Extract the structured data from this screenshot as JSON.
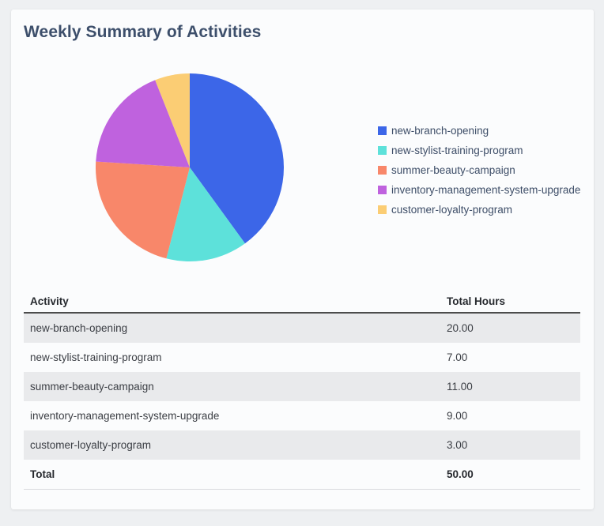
{
  "page": {
    "background_color": "#eef0f2",
    "card_background": "#fbfcfd"
  },
  "card": {
    "title": "Weekly Summary of Activities"
  },
  "chart_data": {
    "type": "pie",
    "title": "Weekly Summary of Activities",
    "categories": [
      "new-branch-opening",
      "new-stylist-training-program",
      "summer-beauty-campaign",
      "inventory-management-system-upgrade",
      "customer-loyalty-program"
    ],
    "values": [
      20,
      7,
      11,
      9,
      3
    ],
    "total": 50,
    "colors": [
      "#3c66e8",
      "#5de1da",
      "#f8876a",
      "#bf62de",
      "#fbcd74"
    ],
    "legend_position": "right",
    "start_angle_deg": 0,
    "direction": "clockwise"
  },
  "table": {
    "headers": [
      "Activity",
      "Total Hours"
    ],
    "rows": [
      [
        "new-branch-opening",
        "20.00"
      ],
      [
        "new-stylist-training-program",
        "7.00"
      ],
      [
        "summer-beauty-campaign",
        "11.00"
      ],
      [
        "inventory-management-system-upgrade",
        "9.00"
      ],
      [
        "customer-loyalty-program",
        "3.00"
      ]
    ],
    "total_row": [
      "Total",
      "50.00"
    ]
  }
}
